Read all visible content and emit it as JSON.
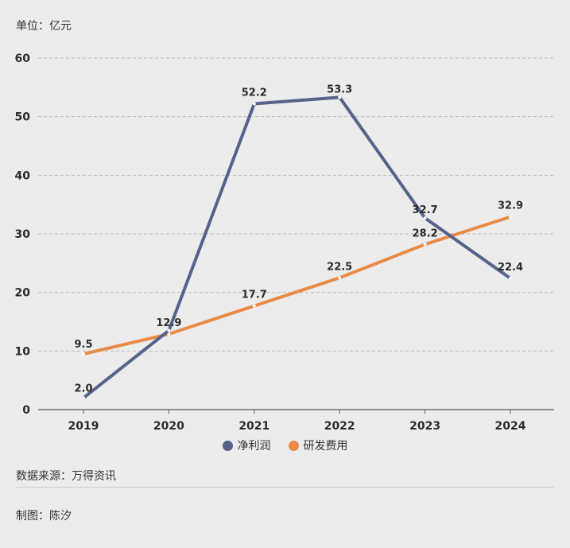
{
  "unit_label": "单位：亿元",
  "source": "数据来源：万得资讯",
  "author": "制图：陈汐",
  "colors": {
    "net_profit": "#56628a",
    "rd_expense": "#e98a45",
    "grid": "#b9b9b9",
    "axis": "#555555"
  },
  "chart_data": {
    "type": "line",
    "x": [
      "2019",
      "2020",
      "2021",
      "2022",
      "2023",
      "2024"
    ],
    "yticks": [
      "0",
      "10",
      "20",
      "30",
      "40",
      "50",
      "60"
    ],
    "ylim": [
      0,
      60
    ],
    "grid": true,
    "legend_position": "bottom",
    "series": [
      {
        "name": "净利润",
        "values": [
          2.0,
          13.5,
          52.2,
          53.3,
          32.7,
          22.4
        ],
        "labels": [
          "2.0",
          "",
          "52.2",
          "53.3",
          "32.7",
          "22.4"
        ]
      },
      {
        "name": "研发费用",
        "values": [
          9.5,
          12.9,
          17.7,
          22.5,
          28.2,
          32.9
        ],
        "labels": [
          "9.5",
          "12.9",
          "17.7",
          "22.5",
          "28.2",
          "32.9"
        ]
      }
    ]
  }
}
